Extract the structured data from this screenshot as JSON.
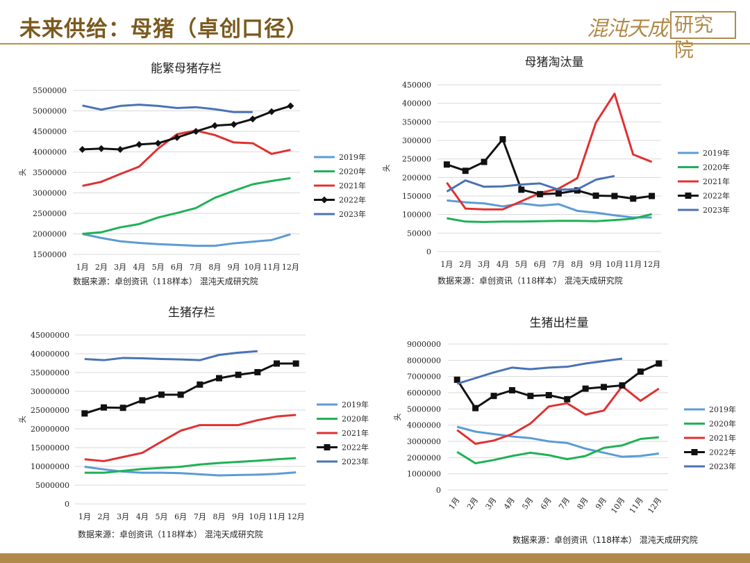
{
  "header": {
    "title": "未来供给：母猪（卓创口径）",
    "logo_text_a": "混沌天成",
    "logo_text_b": "研究院"
  },
  "footer": {
    "source": "数据来源：卓创资讯（118样本） 混沌天成研究院"
  },
  "chart_data": [
    {
      "type": "line",
      "title": "能繁母猪存栏",
      "ylabel": "头",
      "categories": [
        "1月",
        "2月",
        "3月",
        "4月",
        "5月",
        "6月",
        "7月",
        "8月",
        "9月",
        "10月",
        "11月",
        "12月"
      ],
      "ylim": [
        1500000,
        5500000
      ],
      "yticks": [
        1500000,
        2000000,
        2500000,
        3000000,
        3500000,
        4000000,
        4500000,
        5000000,
        5500000
      ],
      "source": "数据来源：卓创资讯（118样本） 混沌天成研究院",
      "series": [
        {
          "name": "2019年",
          "color": "#5b9bd5",
          "marker": "none",
          "values": [
            2000000,
            1900000,
            1820000,
            1780000,
            1750000,
            1730000,
            1710000,
            1710000,
            1770000,
            1810000,
            1850000,
            1990000
          ]
        },
        {
          "name": "2020年",
          "color": "#1fb155",
          "marker": "none",
          "values": [
            2000000,
            2040000,
            2160000,
            2240000,
            2400000,
            2510000,
            2630000,
            2880000,
            3050000,
            3210000,
            3290000,
            3360000
          ]
        },
        {
          "name": "2021年",
          "color": "#e03030",
          "marker": "none",
          "values": [
            3170000,
            3270000,
            3460000,
            3640000,
            4080000,
            4430000,
            4520000,
            4410000,
            4230000,
            4210000,
            3950000,
            4050000
          ]
        },
        {
          "name": "2022年",
          "color": "#111111",
          "marker": "diamond",
          "values": [
            4060000,
            4080000,
            4060000,
            4180000,
            4210000,
            4350000,
            4500000,
            4640000,
            4670000,
            4800000,
            4980000,
            5120000
          ]
        },
        {
          "name": "2023年",
          "color": "#4a72b5",
          "marker": "none",
          "values": [
            5130000,
            5030000,
            5120000,
            5150000,
            5120000,
            5070000,
            5090000,
            5040000,
            4970000,
            4970000,
            null,
            null
          ]
        }
      ]
    },
    {
      "type": "line",
      "title": "母猪淘汰量",
      "ylabel": "头",
      "categories": [
        "1月",
        "2月",
        "3月",
        "4月",
        "5月",
        "6月",
        "7月",
        "8月",
        "9月",
        "10月",
        "11月",
        "12月"
      ],
      "ylim": [
        0,
        450000
      ],
      "yticks": [
        0,
        50000,
        100000,
        150000,
        200000,
        250000,
        300000,
        350000,
        400000,
        450000
      ],
      "source": "数据来源：卓创资讯（118样本） 混沌天成研究院",
      "series": [
        {
          "name": "2019年",
          "color": "#5b9bd5",
          "marker": "none",
          "values": [
            138000,
            133000,
            130000,
            122000,
            130000,
            124000,
            128000,
            110000,
            105000,
            98000,
            92000,
            92000
          ]
        },
        {
          "name": "2020年",
          "color": "#1fb155",
          "marker": "none",
          "values": [
            90000,
            81000,
            80000,
            81000,
            81000,
            82000,
            83000,
            83000,
            82000,
            85000,
            89000,
            101000
          ]
        },
        {
          "name": "2021年",
          "color": "#e03030",
          "marker": "none",
          "values": [
            186000,
            116000,
            114000,
            114000,
            136000,
            158000,
            170000,
            198000,
            348000,
            426000,
            262000,
            242000
          ]
        },
        {
          "name": "2022年",
          "color": "#111111",
          "marker": "square",
          "values": [
            235000,
            218000,
            242000,
            303000,
            167000,
            155000,
            157000,
            165000,
            151000,
            150000,
            143000,
            150000
          ]
        },
        {
          "name": "2023年",
          "color": "#4a72b5",
          "marker": "none",
          "values": [
            162000,
            192000,
            175000,
            176000,
            181000,
            184000,
            167000,
            168000,
            194000,
            204000,
            null,
            null
          ]
        }
      ]
    },
    {
      "type": "line",
      "title": "生猪存栏",
      "ylabel": "头",
      "categories": [
        "1月",
        "2月",
        "3月",
        "4月",
        "5月",
        "6月",
        "7月",
        "8月",
        "9月",
        "10月",
        "11月",
        "12月"
      ],
      "ylim": [
        0,
        45000000
      ],
      "yticks": [
        0,
        5000000,
        10000000,
        15000000,
        20000000,
        25000000,
        30000000,
        35000000,
        40000000,
        45000000
      ],
      "source": "数据来源：卓创资讯（118样本） 混沌天成研究院",
      "series": [
        {
          "name": "2019年",
          "color": "#5b9bd5",
          "marker": "none",
          "values": [
            9900000,
            9200000,
            8600000,
            8300000,
            8300000,
            8200000,
            7900000,
            7600000,
            7700000,
            7800000,
            8000000,
            8400000
          ]
        },
        {
          "name": "2020年",
          "color": "#1fb155",
          "marker": "none",
          "values": [
            8300000,
            8300000,
            8800000,
            9300000,
            9600000,
            9900000,
            10500000,
            10900000,
            11200000,
            11500000,
            11900000,
            12200000
          ]
        },
        {
          "name": "2021年",
          "color": "#e03030",
          "marker": "none",
          "values": [
            11900000,
            11400000,
            12500000,
            13600000,
            16600000,
            19500000,
            21000000,
            21000000,
            21000000,
            22300000,
            23300000,
            23700000
          ]
        },
        {
          "name": "2022年",
          "color": "#111111",
          "marker": "square",
          "values": [
            24100000,
            25700000,
            25600000,
            27600000,
            29100000,
            29100000,
            31800000,
            33500000,
            34400000,
            35100000,
            37400000,
            37400000
          ]
        },
        {
          "name": "2023年",
          "color": "#4a72b5",
          "marker": "none",
          "values": [
            38600000,
            38300000,
            38900000,
            38800000,
            38600000,
            38500000,
            38300000,
            39700000,
            40300000,
            40700000,
            null,
            null
          ]
        }
      ]
    },
    {
      "type": "line",
      "title": "生猪出栏量",
      "ylabel": "头",
      "categories": [
        "1月",
        "2月",
        "3月",
        "4月",
        "5月",
        "6月",
        "7月",
        "8月",
        "9月",
        "10月",
        "11月",
        "12月"
      ],
      "ylim": [
        0,
        9000000
      ],
      "yticks": [
        0,
        1000000,
        2000000,
        3000000,
        4000000,
        5000000,
        6000000,
        7000000,
        8000000,
        9000000
      ],
      "source": "",
      "series": [
        {
          "name": "2019年",
          "color": "#5b9bd5",
          "marker": "none",
          "values": [
            3900000,
            3600000,
            3450000,
            3300000,
            3200000,
            3000000,
            2900000,
            2550000,
            2300000,
            2050000,
            2100000,
            2250000
          ]
        },
        {
          "name": "2020年",
          "color": "#1fb155",
          "marker": "none",
          "values": [
            2350000,
            1650000,
            1850000,
            2100000,
            2300000,
            2150000,
            1900000,
            2100000,
            2600000,
            2750000,
            3150000,
            3250000
          ]
        },
        {
          "name": "2021年",
          "color": "#e03030",
          "marker": "none",
          "values": [
            3700000,
            2850000,
            3050000,
            3450000,
            4100000,
            5150000,
            5350000,
            4650000,
            4900000,
            6400000,
            5500000,
            6250000
          ]
        },
        {
          "name": "2022年",
          "color": "#111111",
          "marker": "square",
          "values": [
            6800000,
            5050000,
            5800000,
            6150000,
            5800000,
            5850000,
            5600000,
            6250000,
            6350000,
            6450000,
            7300000,
            7800000
          ]
        },
        {
          "name": "2023年",
          "color": "#4a72b5",
          "marker": "none",
          "values": [
            6550000,
            6900000,
            7250000,
            7550000,
            7450000,
            7550000,
            7600000,
            7800000,
            7950000,
            8100000,
            null,
            null
          ]
        }
      ]
    }
  ]
}
